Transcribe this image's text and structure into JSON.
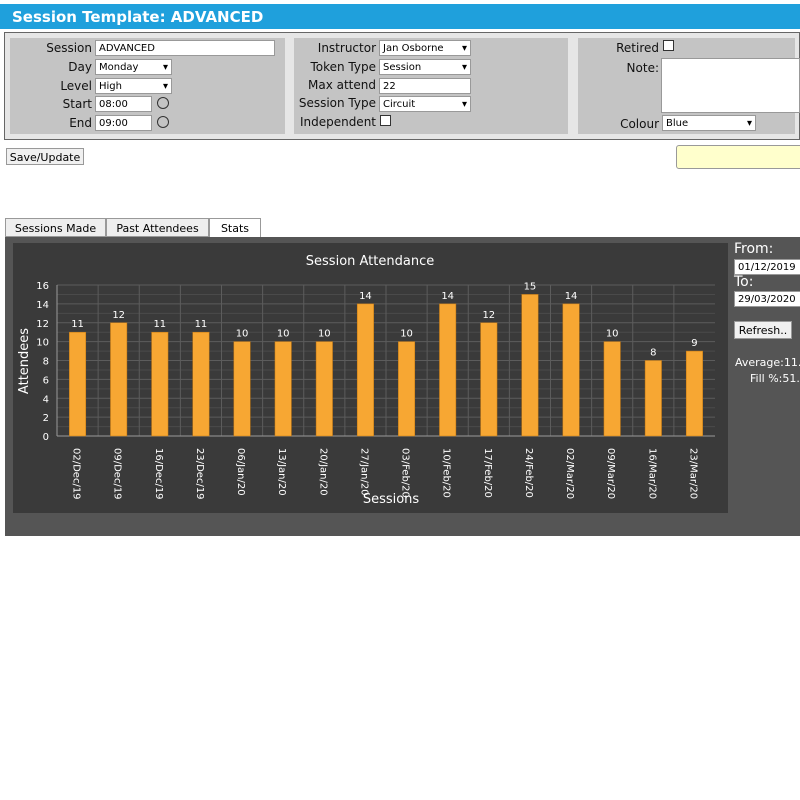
{
  "header": {
    "title": "Session Template: ADVANCED"
  },
  "form": {
    "session_label": "Session",
    "session": "ADVANCED",
    "day_label": "Day",
    "day": "Monday",
    "level_label": "Level",
    "level": "High",
    "start_label": "Start",
    "start": "08:00",
    "end_label": "End",
    "end": "09:00",
    "instructor_label": "Instructor",
    "instructor": "Jan Osborne",
    "token_type_label": "Token Type",
    "token_type": "Session",
    "max_attend_label": "Max attend",
    "max_attend": 22,
    "session_type_label": "Session Type",
    "session_type": "Circuit",
    "independent_label": "Independent",
    "retired_label": "Retired",
    "note_label": "Note:",
    "colour_label": "Colour",
    "colour": "Blue"
  },
  "save_button": "Save/Update",
  "tabs": [
    "Sessions Made",
    "Past Attendees",
    "Stats"
  ],
  "chart_data": {
    "type": "bar",
    "title": "Session Attendance",
    "x_label": "Sessions",
    "y_label": "Attendees",
    "categories": [
      "02/Dec/19",
      "09/Dec/19",
      "16/Dec/19",
      "23/Dec/19",
      "06/Jan/20",
      "13/Jan/20",
      "20/Jan/20",
      "27/Jan/20",
      "03/Feb/20",
      "10/Feb/20",
      "17/Feb/20",
      "24/Feb/20",
      "02/Mar/20",
      "09/Mar/20",
      "16/Mar/20",
      "23/Mar/20"
    ],
    "values": [
      11,
      12,
      11,
      11,
      10,
      10,
      10,
      14,
      10,
      14,
      12,
      15,
      14,
      10,
      8,
      9
    ],
    "color": "#f7a733",
    "ylim": [
      0,
      16
    ],
    "yticks": [
      0,
      2,
      4,
      6,
      8,
      10,
      12,
      14,
      16
    ],
    "grid": true
  },
  "sidebar": {
    "from_label": "From:",
    "from": "01/12/2019",
    "to_label": "To:",
    "to": "29/03/2020",
    "refresh": "Refresh..",
    "average": "Average:11.",
    "fill": "Fill %:51."
  }
}
